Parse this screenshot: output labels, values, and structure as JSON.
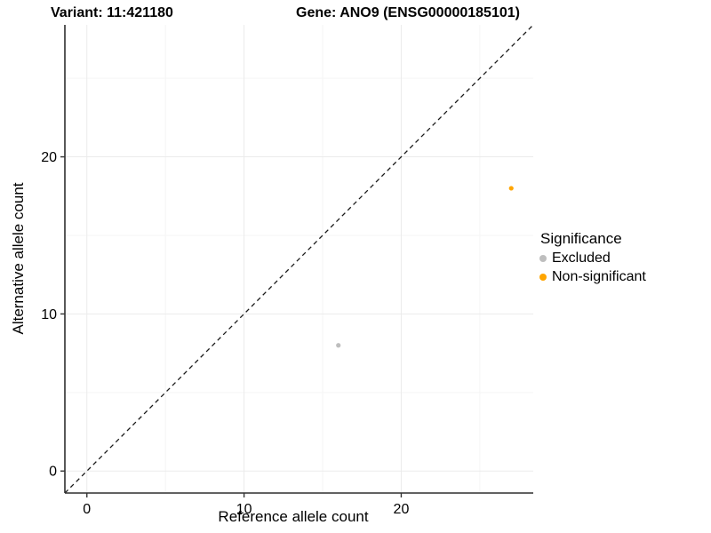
{
  "header": {
    "title_left": "Variant: 11:421180",
    "title_right": "Gene: ANO9 (ENSG00000185101)"
  },
  "chart_data": {
    "type": "scatter",
    "title_left": "Variant: 11:421180",
    "title_right": "Gene: ANO9 (ENSG00000185101)",
    "xlabel": "Reference allele count",
    "ylabel": "Alternative allele count",
    "xlim": [
      -1.4,
      28.4
    ],
    "ylim": [
      -1.4,
      28.4
    ],
    "x_ticks": [
      0,
      10,
      20
    ],
    "y_ticks": [
      0,
      10,
      20
    ],
    "major_gridlines": [
      0,
      10,
      20
    ],
    "minor_gridlines": [
      5,
      15,
      25
    ],
    "grid": true,
    "series": [
      {
        "name": "Excluded",
        "color": "#bebebe",
        "points": [
          [
            16,
            8
          ]
        ]
      },
      {
        "name": "Non-significant",
        "color": "#ffa500",
        "points": [
          [
            27,
            18
          ]
        ]
      }
    ],
    "identity_line": {
      "style": "dashed",
      "color": "#1a1a1a",
      "slope": 1,
      "intercept": 0
    },
    "legend": {
      "title": "Significance",
      "position": "right"
    }
  },
  "colors": {
    "background": "#ffffff",
    "axis_line": "#2f2f2f",
    "tick": "#333333",
    "grid_major": "#ebebeb",
    "grid_minor": "#f5f5f5",
    "excluded": "#bebebe",
    "non_significant": "#ffa500"
  }
}
